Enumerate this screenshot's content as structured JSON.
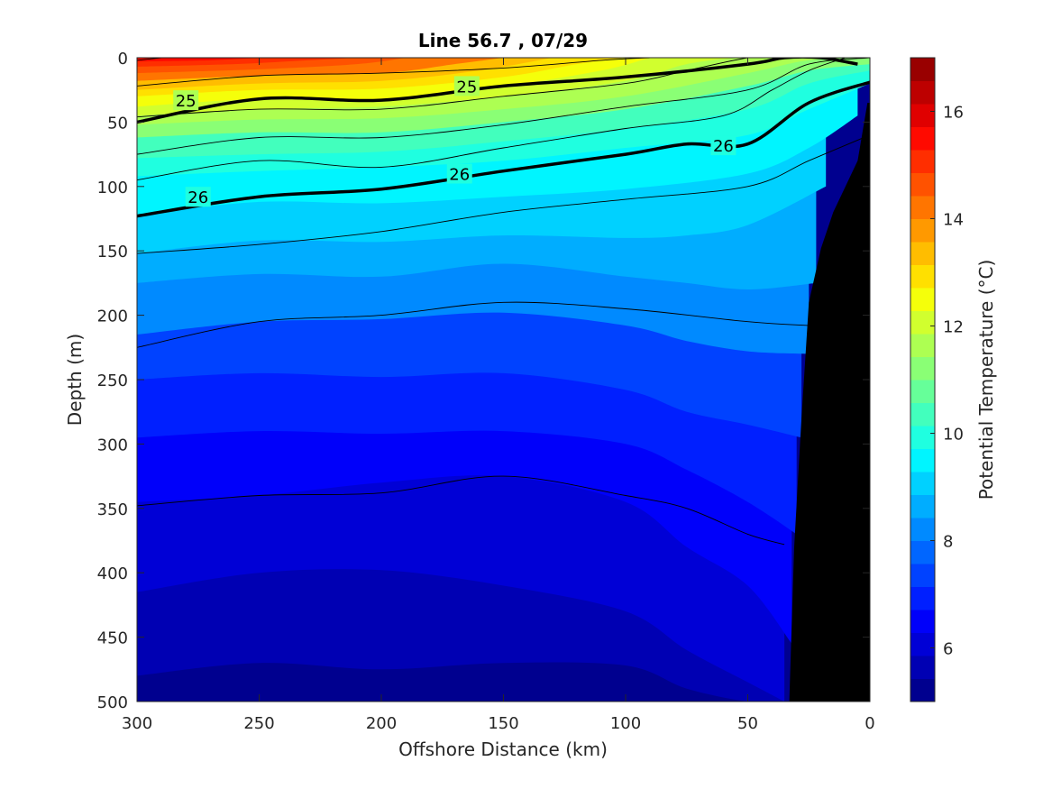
{
  "chart_data": {
    "type": "contour",
    "title": "Line 56.7 , 07/29",
    "xlabel": "Offshore Distance (km)",
    "ylabel": "Depth (m)",
    "colorbar_label": "Potential Temperature (°C)",
    "xlim": [
      300,
      0
    ],
    "ylim": [
      0,
      500
    ],
    "x_reversed": true,
    "y_reversed": true,
    "x_ticks": [
      300,
      250,
      200,
      150,
      100,
      50,
      0
    ],
    "y_ticks": [
      0,
      50,
      100,
      150,
      200,
      250,
      300,
      350,
      400,
      450,
      500
    ],
    "colorbar_range": [
      5,
      17
    ],
    "colorbar_ticks": [
      6,
      8,
      10,
      12,
      14,
      16
    ],
    "colormap": [
      "#00008f",
      "#0000b3",
      "#0000d6",
      "#0000fa",
      "#001fff",
      "#0042ff",
      "#0066ff",
      "#008aff",
      "#00adff",
      "#00d1ff",
      "#00f5ff",
      "#1fffe0",
      "#42ffbd",
      "#66ff99",
      "#8aff75",
      "#adff52",
      "#d1ff2e",
      "#f5ff0a",
      "#ffe000",
      "#ffbd00",
      "#ff9900",
      "#ff7500",
      "#ff5200",
      "#ff2e00",
      "#ff0a00",
      "#e00000",
      "#bd0000",
      "#990000"
    ],
    "temperature_isotherms": [
      {
        "temp": 5.5,
        "x": [
          300,
          250,
          200,
          150,
          100,
          75,
          50,
          35
        ],
        "depth": [
          480,
          470,
          475,
          470,
          472,
          490,
          500,
          500
        ]
      },
      {
        "temp": 6,
        "x": [
          300,
          250,
          200,
          150,
          100,
          75,
          50,
          35
        ],
        "depth": [
          415,
          400,
          398,
          410,
          430,
          460,
          485,
          500
        ]
      },
      {
        "temp": 6.5,
        "x": [
          300,
          250,
          200,
          150,
          100,
          75,
          50,
          32
        ],
        "depth": [
          345,
          340,
          330,
          325,
          345,
          380,
          410,
          455
        ]
      },
      {
        "temp": 7,
        "x": [
          300,
          250,
          200,
          150,
          100,
          75,
          50,
          30
        ],
        "depth": [
          295,
          290,
          292,
          290,
          300,
          320,
          345,
          370
        ]
      },
      {
        "temp": 7.5,
        "x": [
          300,
          250,
          200,
          150,
          100,
          75,
          50,
          28
        ],
        "depth": [
          250,
          245,
          248,
          245,
          258,
          275,
          285,
          295
        ]
      },
      {
        "temp": 8,
        "x": [
          300,
          250,
          200,
          150,
          100,
          75,
          50,
          25
        ],
        "depth": [
          215,
          205,
          203,
          198,
          208,
          220,
          228,
          230
        ]
      },
      {
        "temp": 8.5,
        "x": [
          300,
          250,
          200,
          150,
          100,
          75,
          50,
          22
        ],
        "depth": [
          175,
          168,
          170,
          160,
          170,
          175,
          180,
          175
        ]
      },
      {
        "temp": 9,
        "x": [
          300,
          250,
          200,
          150,
          100,
          75,
          50,
          18
        ],
        "depth": [
          152,
          142,
          143,
          138,
          140,
          138,
          130,
          100
        ]
      },
      {
        "temp": 9.5,
        "x": [
          300,
          250,
          200,
          150,
          100,
          50,
          25,
          5
        ],
        "depth": [
          122,
          112,
          113,
          108,
          102,
          90,
          70,
          45
        ]
      },
      {
        "temp": 10,
        "x": [
          300,
          250,
          200,
          150,
          100,
          50,
          25,
          0
        ],
        "depth": [
          92,
          88,
          85,
          80,
          70,
          60,
          40,
          20
        ]
      },
      {
        "temp": 10.5,
        "x": [
          300,
          250,
          200,
          150,
          100,
          50,
          25,
          0
        ],
        "depth": [
          78,
          75,
          73,
          65,
          55,
          40,
          20,
          10
        ]
      },
      {
        "temp": 11,
        "x": [
          300,
          250,
          200,
          150,
          100,
          50,
          25,
          0
        ],
        "depth": [
          62,
          58,
          58,
          50,
          40,
          22,
          10,
          5
        ]
      },
      {
        "temp": 11.5,
        "x": [
          300,
          250,
          200,
          150,
          100,
          50,
          25,
          0
        ],
        "depth": [
          52,
          48,
          47,
          40,
          30,
          12,
          2,
          0
        ]
      },
      {
        "temp": 12,
        "x": [
          300,
          250,
          200,
          150,
          100,
          75,
          55
        ],
        "depth": [
          45,
          40,
          38,
          30,
          18,
          5,
          0
        ]
      },
      {
        "temp": 12.5,
        "x": [
          300,
          250,
          200,
          150,
          110,
          90
        ],
        "depth": [
          38,
          32,
          32,
          22,
          10,
          0
        ]
      },
      {
        "temp": 13,
        "x": [
          300,
          250,
          200,
          150,
          120,
          100
        ],
        "depth": [
          30,
          25,
          24,
          15,
          5,
          0
        ]
      },
      {
        "temp": 13.5,
        "x": [
          300,
          250,
          200,
          160,
          130
        ],
        "depth": [
          25,
          20,
          18,
          10,
          0
        ]
      },
      {
        "temp": 14,
        "x": [
          300,
          250,
          200,
          170,
          150
        ],
        "depth": [
          18,
          14,
          12,
          5,
          0
        ]
      },
      {
        "temp": 14.5,
        "x": [
          300,
          250,
          210,
          190
        ],
        "depth": [
          12,
          9,
          5,
          0
        ]
      },
      {
        "temp": 15,
        "x": [
          300,
          260,
          230,
          210
        ],
        "depth": [
          7,
          5,
          2,
          0
        ]
      },
      {
        "temp": 15.5,
        "x": [
          300,
          270,
          250
        ],
        "depth": [
          3,
          2,
          0
        ]
      }
    ],
    "density_contours": [
      {
        "x": [
          300,
          290
        ],
        "depth": [
          2,
          0
        ],
        "bold": false
      },
      {
        "x": [
          300,
          250,
          200,
          150,
          110,
          90
        ],
        "depth": [
          22,
          14,
          12,
          8,
          2,
          0
        ],
        "bold": false
      },
      {
        "x": [
          300,
          250,
          200,
          150,
          100,
          75,
          50,
          40
        ],
        "depth": [
          46,
          40,
          40,
          30,
          20,
          10,
          0,
          0
        ],
        "bold": false
      },
      {
        "x": [
          300,
          250,
          200,
          150,
          100,
          50,
          35,
          20,
          5
        ],
        "depth": [
          50,
          32,
          33,
          22,
          15,
          5,
          0,
          0,
          5
        ],
        "bold": true,
        "label": "25",
        "label_positions": [
          {
            "x": 280,
            "depth": 33
          },
          {
            "x": 165,
            "depth": 22
          }
        ]
      },
      {
        "x": [
          300,
          250,
          200,
          150,
          100,
          50,
          25,
          0
        ],
        "depth": [
          75,
          62,
          62,
          52,
          38,
          25,
          5,
          0
        ],
        "bold": false
      },
      {
        "x": [
          300,
          250,
          200,
          150,
          100,
          60,
          40,
          25,
          10
        ],
        "depth": [
          95,
          80,
          85,
          70,
          55,
          45,
          25,
          10,
          0
        ],
        "bold": false
      },
      {
        "x": [
          300,
          250,
          200,
          150,
          100,
          75,
          50,
          25,
          0
        ],
        "depth": [
          123,
          108,
          102,
          88,
          75,
          67,
          67,
          35,
          19
        ],
        "bold": true,
        "label": "26",
        "label_positions": [
          {
            "x": 275,
            "depth": 108
          },
          {
            "x": 168,
            "depth": 90
          },
          {
            "x": 60,
            "depth": 68
          }
        ]
      },
      {
        "x": [
          300,
          250,
          200,
          150,
          100,
          50,
          25,
          0
        ],
        "depth": [
          152,
          145,
          135,
          120,
          110,
          100,
          80,
          60
        ],
        "bold": false
      },
      {
        "x": [
          300,
          250,
          200,
          150,
          100,
          50,
          25
        ],
        "depth": [
          225,
          205,
          200,
          190,
          195,
          205,
          208
        ],
        "bold": false
      },
      {
        "x": [
          300,
          250,
          200,
          150,
          100,
          75,
          50,
          35
        ],
        "depth": [
          348,
          340,
          338,
          325,
          340,
          350,
          370,
          378
        ],
        "bold": false
      }
    ],
    "bathymetry": {
      "x": [
        33,
        31,
        28,
        25,
        20,
        15,
        10,
        5,
        1,
        0,
        0
      ],
      "depth": [
        500,
        380,
        280,
        190,
        148,
        120,
        100,
        80,
        35,
        35,
        500
      ]
    }
  }
}
